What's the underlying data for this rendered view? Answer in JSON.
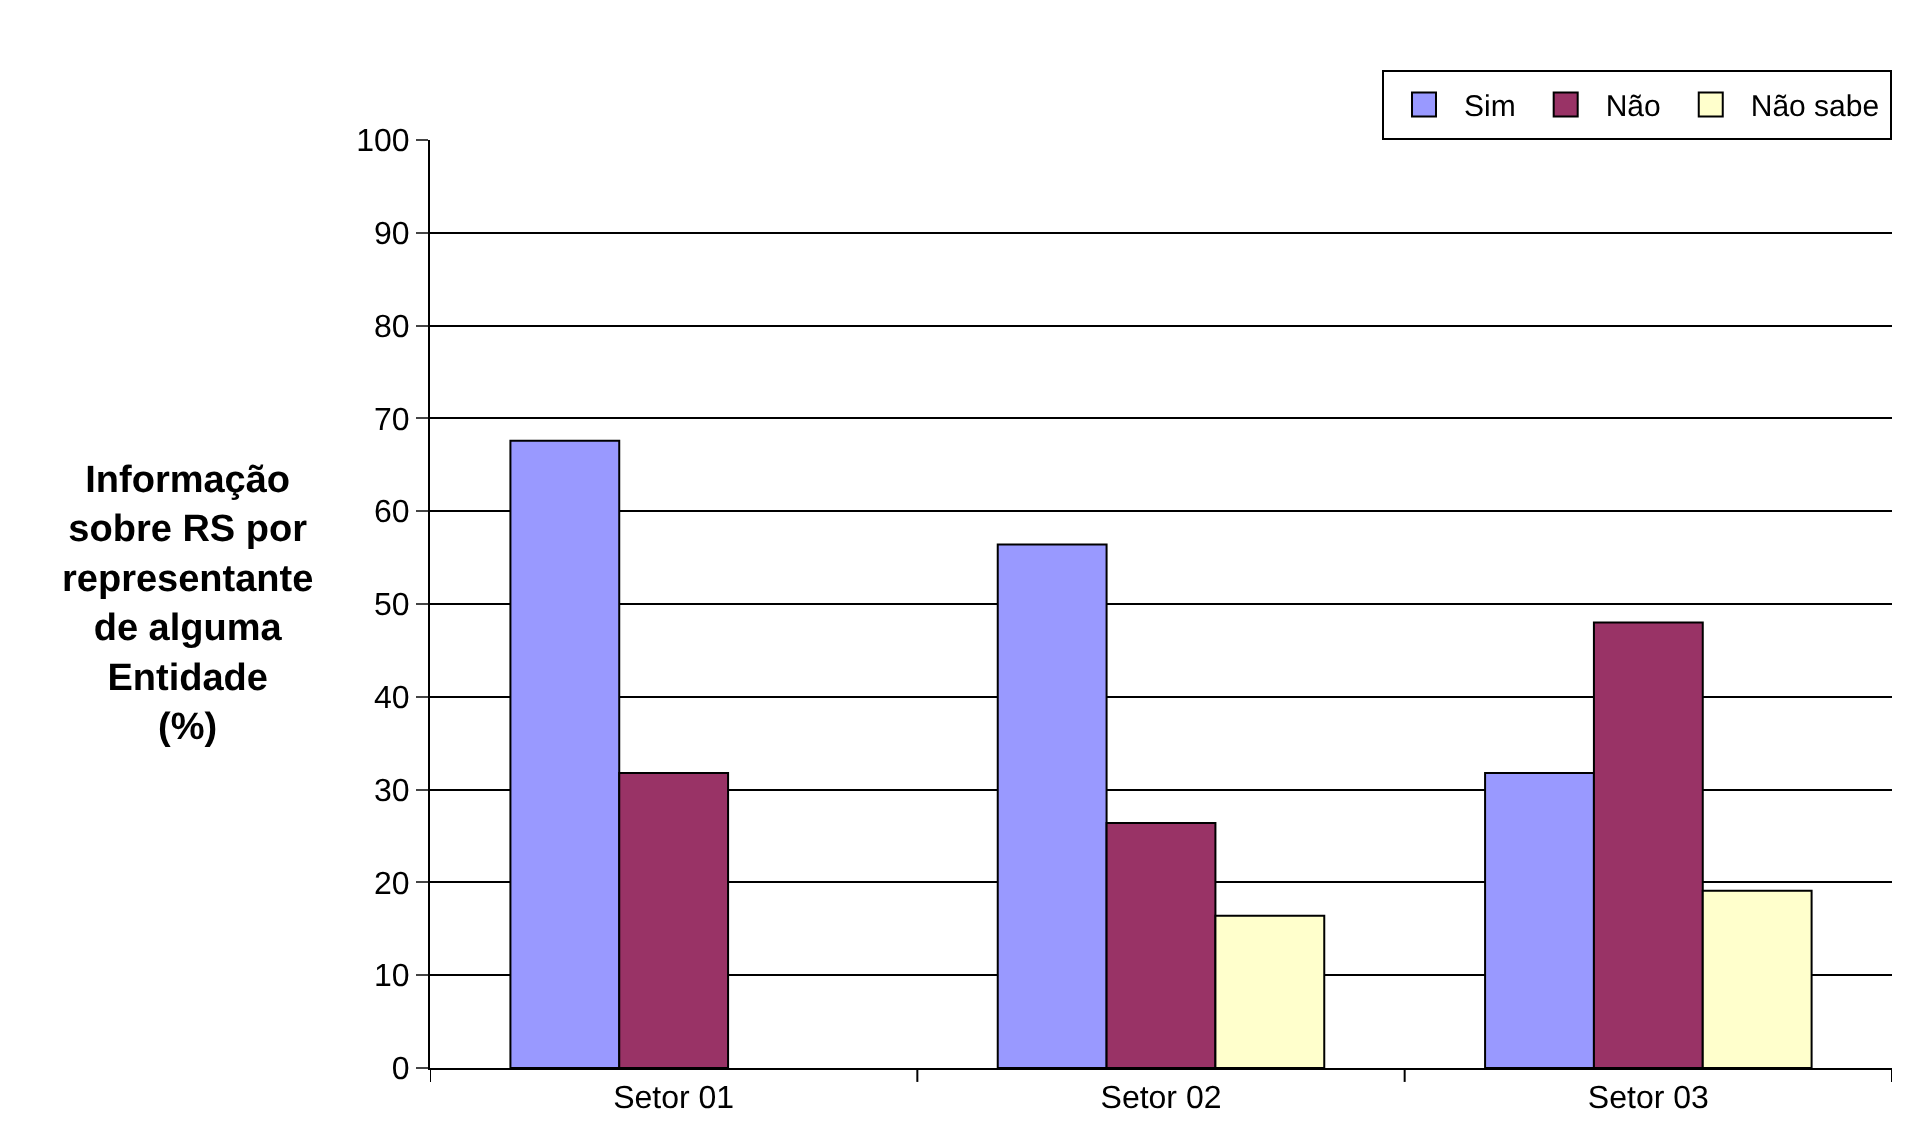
{
  "chart_data": {
    "type": "bar",
    "ylabel": "Informação\nsobre RS por\nrepresentante\nde alguma\nEntidade\n(%)",
    "categories": [
      "Setor 01",
      "Setor 02",
      "Setor 03"
    ],
    "series": [
      {
        "name": "Sim",
        "color": "#9999ff",
        "values": [
          67.6,
          56.4,
          31.8
        ]
      },
      {
        "name": "Não",
        "color": "#993366",
        "values": [
          31.8,
          26.4,
          48.0
        ]
      },
      {
        "name": "Não sabe",
        "color": "#ffffcc",
        "values": [
          null,
          16.4,
          19.1
        ]
      }
    ],
    "ylim": [
      0,
      100
    ],
    "yticks": [
      0,
      10,
      20,
      30,
      40,
      50,
      60,
      70,
      80,
      90,
      100
    ],
    "grid": "y",
    "legend": "top right"
  }
}
